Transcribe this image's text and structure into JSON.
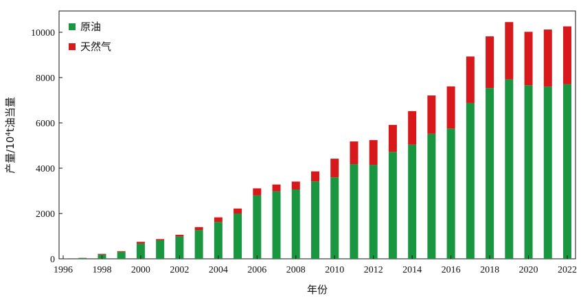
{
  "chart_data": {
    "type": "bar",
    "stacked": true,
    "title": "",
    "xlabel": "年份",
    "ylabel_main": "产量/10",
    "ylabel_sup": "4",
    "ylabel_rest": "t油当量",
    "ylim": [
      0,
      10800
    ],
    "yticks": [
      0,
      2000,
      4000,
      6000,
      8000,
      10000
    ],
    "x": [
      1996,
      1997,
      1998,
      1999,
      2000,
      2001,
      2002,
      2003,
      2004,
      2005,
      2006,
      2007,
      2008,
      2009,
      2010,
      2011,
      2012,
      2013,
      2014,
      2015,
      2016,
      2017,
      2018,
      2019,
      2020,
      2021,
      2022
    ],
    "xticks": [
      1996,
      1998,
      2000,
      2002,
      2004,
      2006,
      2008,
      2010,
      2012,
      2014,
      2016,
      2018,
      2020,
      2022
    ],
    "series": [
      {
        "name": "原油",
        "color": "#1a9641",
        "values": [
          5,
          30,
          190,
          310,
          680,
          820,
          990,
          1270,
          1630,
          2000,
          2800,
          2980,
          3060,
          3420,
          3600,
          4180,
          4150,
          4720,
          5040,
          5520,
          5750,
          6880,
          7540,
          7920,
          7660,
          7600,
          7710
        ]
      },
      {
        "name": "天然气",
        "color": "#d7191c",
        "values": [
          0,
          10,
          30,
          30,
          70,
          50,
          70,
          130,
          200,
          220,
          310,
          300,
          350,
          440,
          820,
          1000,
          1090,
          1190,
          1480,
          1690,
          1860,
          2050,
          2280,
          2530,
          2360,
          2520,
          2550
        ]
      }
    ],
    "legend_position": "top-left",
    "grid": false
  }
}
